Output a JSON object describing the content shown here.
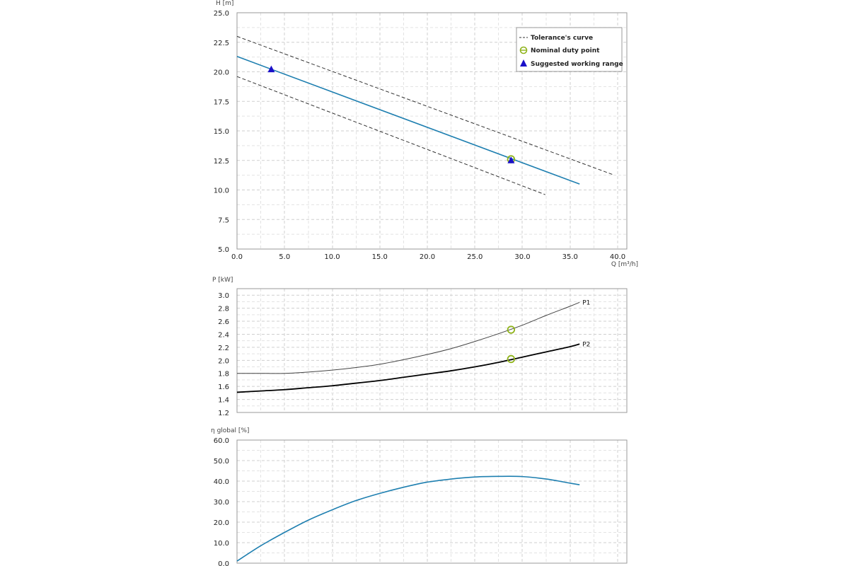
{
  "colors": {
    "curve": "#1e7fb0",
    "p1": "#444444",
    "p2": "#000000",
    "tolerance": "#333333",
    "duty": "#8fb31a",
    "range": "#1a10c8",
    "grid": "#cfcfcf"
  },
  "legend": {
    "tolerance": "Tolerance's curve",
    "duty": "Nominal duty point",
    "range": "Suggested working range"
  },
  "chart_data": [
    {
      "type": "line",
      "name": "head",
      "ylabel": "H [m]",
      "xlabel": "Q [m³/h]",
      "xlim": [
        0,
        41
      ],
      "ylim": [
        5,
        25
      ],
      "xticks": [
        "0.0",
        "5.0",
        "10.0",
        "15.0",
        "20.0",
        "25.0",
        "30.0",
        "35.0",
        "40.0"
      ],
      "yticks": [
        "5.0",
        "7.5",
        "10.0",
        "12.5",
        "15.0",
        "17.5",
        "20.0",
        "22.5",
        "25.0"
      ],
      "grid": true,
      "series": [
        {
          "name": "Pump curve",
          "x": [
            0,
            36
          ],
          "y": [
            21.3,
            10.5
          ]
        },
        {
          "name": "Tolerance upper",
          "x": [
            0,
            39.5
          ],
          "y": [
            23.0,
            11.3
          ]
        },
        {
          "name": "Tolerance lower",
          "x": [
            0,
            32.4
          ],
          "y": [
            19.6,
            9.6
          ]
        }
      ],
      "duty_point": {
        "x": 28.8,
        "y": 12.6
      },
      "range_points": [
        {
          "x": 3.6,
          "y": 20.2
        },
        {
          "x": 28.8,
          "y": 12.5
        }
      ]
    },
    {
      "type": "line",
      "name": "power",
      "ylabel": "P [kW]",
      "xlim": [
        0,
        41
      ],
      "ylim": [
        1.2,
        3.1
      ],
      "yticks": [
        "1.2",
        "1.4",
        "1.6",
        "1.8",
        "2.0",
        "2.2",
        "2.4",
        "2.6",
        "2.8",
        "3.0"
      ],
      "grid": true,
      "series": [
        {
          "name": "P1",
          "x": [
            0,
            2.5,
            5,
            7.5,
            10,
            12.5,
            15,
            17.5,
            20,
            22.5,
            25,
            27.5,
            30,
            32.5,
            35,
            36
          ],
          "y": [
            1.8,
            1.8,
            1.8,
            1.82,
            1.85,
            1.89,
            1.94,
            2.01,
            2.09,
            2.18,
            2.29,
            2.41,
            2.54,
            2.69,
            2.83,
            2.89
          ]
        },
        {
          "name": "P2",
          "x": [
            0,
            2.5,
            5,
            7.5,
            10,
            12.5,
            15,
            17.5,
            20,
            22.5,
            25,
            27.5,
            30,
            32.5,
            35,
            36
          ],
          "y": [
            1.51,
            1.53,
            1.55,
            1.58,
            1.61,
            1.65,
            1.69,
            1.74,
            1.79,
            1.84,
            1.9,
            1.97,
            2.05,
            2.13,
            2.21,
            2.25
          ]
        }
      ],
      "duty_points": [
        {
          "x": 28.8,
          "y": 2.47
        },
        {
          "x": 28.8,
          "y": 2.02
        }
      ]
    },
    {
      "type": "line",
      "name": "efficiency",
      "ylabel": "η global [%]",
      "xlim": [
        0,
        41
      ],
      "ylim": [
        0,
        60
      ],
      "yticks": [
        "0.0",
        "10.0",
        "20.0",
        "30.0",
        "40.0",
        "50.0",
        "60.0"
      ],
      "grid": true,
      "series": [
        {
          "name": "η global",
          "x": [
            0,
            2.5,
            5,
            7.5,
            10,
            12.5,
            15,
            17.5,
            20,
            22.5,
            25,
            27.5,
            30,
            32.5,
            35,
            36
          ],
          "y": [
            1.0,
            8.5,
            15.0,
            21.0,
            26.0,
            30.5,
            34.0,
            37.0,
            39.5,
            41.0,
            42.0,
            42.3,
            42.2,
            41.0,
            39.0,
            38.2
          ]
        }
      ]
    }
  ]
}
